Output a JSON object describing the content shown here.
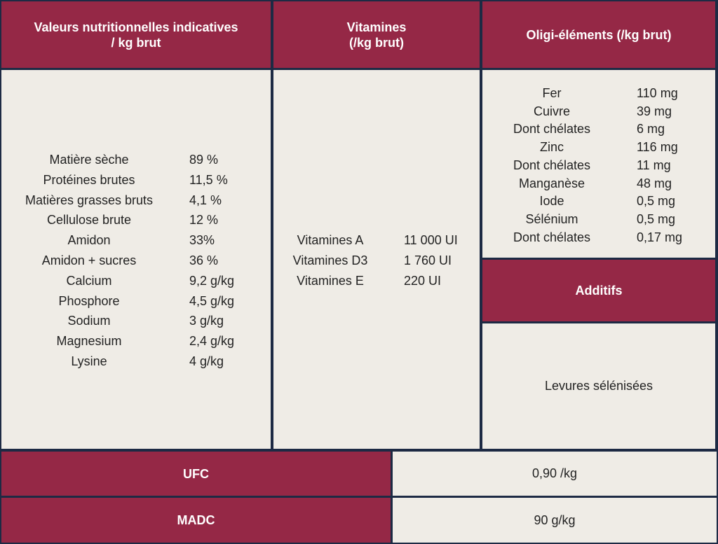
{
  "headers": [
    [
      "Valeurs nutritionnelles indicatives",
      "/ kg brut"
    ],
    [
      "Vitamines",
      "(/kg brut)"
    ],
    [
      "Oligi-éléments (/kg brut)"
    ]
  ],
  "nutrition": [
    [
      "Matière sèche",
      "89 %"
    ],
    [
      "Protéines brutes",
      "11,5 %"
    ],
    [
      "Matières grasses bruts",
      "4,1 %"
    ],
    [
      "Cellulose brute",
      "12 %"
    ],
    [
      "Amidon",
      "33%"
    ],
    [
      "Amidon + sucres",
      "36 %"
    ],
    [
      "Calcium",
      "9,2 g/kg"
    ],
    [
      "Phosphore",
      "4,5 g/kg"
    ],
    [
      "Sodium",
      "3 g/kg"
    ],
    [
      "Magnesium",
      "2,4 g/kg"
    ],
    [
      "Lysine",
      "4 g/kg"
    ]
  ],
  "vitamins": [
    [
      "Vitamines A",
      "11 000 UI"
    ],
    [
      "Vitamines D3",
      "1 760 UI"
    ],
    [
      "Vitamines E",
      "220 UI"
    ]
  ],
  "oligo_elements": [
    [
      "Fer",
      "110 mg"
    ],
    [
      "Cuivre",
      "39 mg"
    ],
    [
      "Dont chélates",
      "6 mg"
    ],
    [
      "Zinc",
      "116 mg"
    ],
    [
      "Dont chélates",
      "11 mg"
    ],
    [
      "Manganèse",
      "48 mg"
    ],
    [
      "Iode",
      "0,5 mg"
    ],
    [
      "Sélénium",
      "0,5 mg"
    ],
    [
      "Dont chélates",
      "0,17 mg"
    ]
  ],
  "additifs": {
    "title": "Additifs",
    "items": [
      "Levures sélénisées"
    ]
  },
  "summary": [
    [
      "UFC",
      "0,90 /kg"
    ],
    [
      "MADC",
      "90 g/kg"
    ]
  ]
}
